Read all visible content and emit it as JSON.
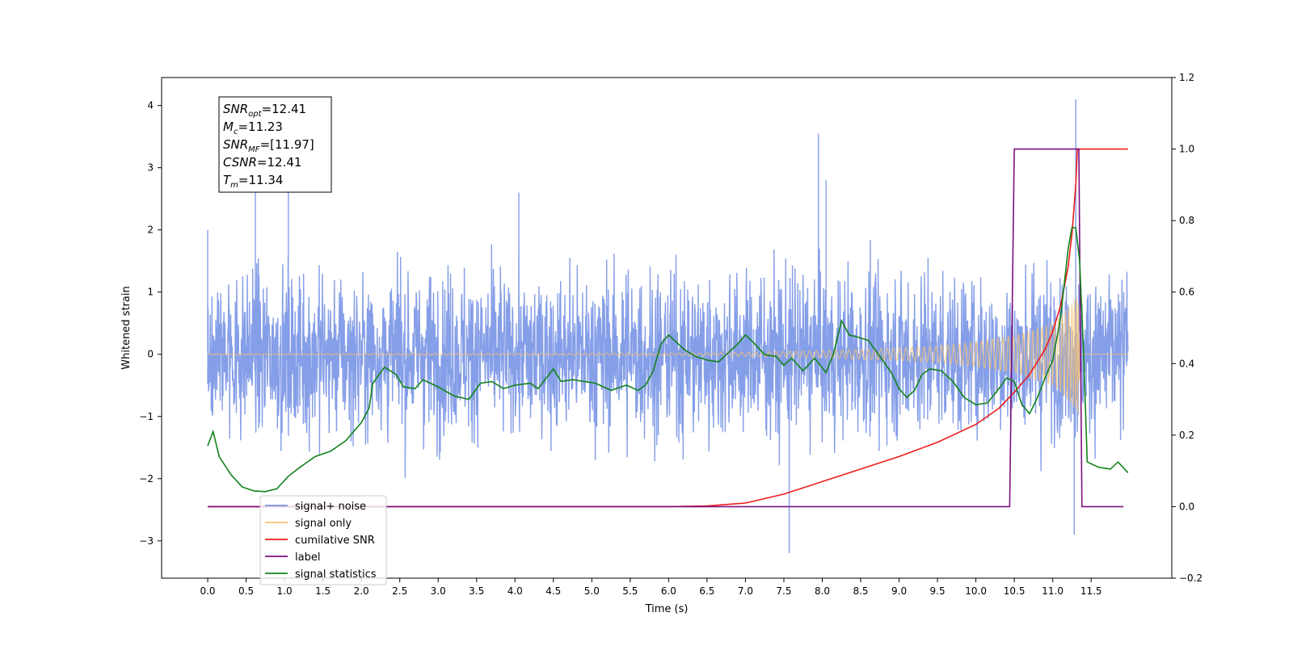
{
  "chart_data": {
    "type": "line",
    "xlabel": "Time (s)",
    "ylabel_left": "Whitened strain",
    "ylabel_right": "",
    "xlim": [
      -0.6,
      12.55
    ],
    "ylim_left": [
      -3.6,
      4.45
    ],
    "ylim_right": [
      -0.2,
      1.2
    ],
    "x_ticks": [
      "0.0",
      "0.5",
      "1.0",
      "1.5",
      "2.0",
      "2.5",
      "3.0",
      "3.5",
      "4.0",
      "4.5",
      "5.0",
      "5.5",
      "6.0",
      "6.5",
      "7.0",
      "7.5",
      "8.0",
      "8.5",
      "9.0",
      "9.5",
      "10.0",
      "10.5",
      "11.0",
      "11.5"
    ],
    "y_ticks_left": [
      "−3",
      "−2",
      "−1",
      "0",
      "1",
      "2",
      "3",
      "4"
    ],
    "y_ticks_right": [
      "−0.2",
      "0.0",
      "0.2",
      "0.4",
      "0.6",
      "0.8",
      "1.0",
      "1.2"
    ],
    "grid": false,
    "legend_position": "lower-left",
    "info_box": {
      "lines": [
        {
          "main": "SNR",
          "sub": "opt",
          "rest": "=12.41"
        },
        {
          "main": "M",
          "sub": "c",
          "rest": "=11.23"
        },
        {
          "main": "SNR",
          "sub": "MF",
          "rest": "=[11.97]"
        },
        {
          "main": "CSNR",
          "sub": "",
          "rest": "=12.41"
        },
        {
          "main": "T",
          "sub": "m",
          "rest": "=11.34"
        }
      ]
    },
    "series": [
      {
        "name": "signal+ noise",
        "axis": "left",
        "color": "#7893e6",
        "style": "noise",
        "x_range": [
          0.0,
          11.98
        ],
        "noise_rms": 0.9,
        "notable_peaks": [
          [
            0.0,
            2.0
          ],
          [
            0.62,
            2.7
          ],
          [
            1.05,
            2.75
          ],
          [
            4.05,
            2.6
          ],
          [
            7.57,
            -3.2
          ],
          [
            7.95,
            3.55
          ],
          [
            8.05,
            2.8
          ],
          [
            11.3,
            4.1
          ],
          [
            11.28,
            -2.9
          ]
        ]
      },
      {
        "name": "signal only",
        "axis": "left",
        "color": "#f5c270",
        "style": "chirp",
        "x_range": [
          0.0,
          11.98
        ],
        "envelope": [
          [
            0.0,
            0.005
          ],
          [
            6.5,
            0.02
          ],
          [
            8.0,
            0.06
          ],
          [
            9.0,
            0.1
          ],
          [
            9.5,
            0.13
          ],
          [
            10.0,
            0.2
          ],
          [
            10.5,
            0.3
          ],
          [
            11.0,
            0.5
          ],
          [
            11.2,
            0.75
          ],
          [
            11.3,
            0.9
          ],
          [
            11.33,
            0.95
          ],
          [
            11.36,
            0.0
          ],
          [
            11.98,
            0.0
          ]
        ]
      },
      {
        "name": "cumilative SNR",
        "axis": "right",
        "color": "#ee1c1c",
        "style": "line",
        "points": [
          [
            0.0,
            0.0
          ],
          [
            6.0,
            0.0
          ],
          [
            6.5,
            0.002
          ],
          [
            7.0,
            0.01
          ],
          [
            7.5,
            0.035
          ],
          [
            8.0,
            0.07
          ],
          [
            8.5,
            0.105
          ],
          [
            9.0,
            0.14
          ],
          [
            9.5,
            0.18
          ],
          [
            10.0,
            0.23
          ],
          [
            10.3,
            0.275
          ],
          [
            10.5,
            0.32
          ],
          [
            10.7,
            0.37
          ],
          [
            10.9,
            0.44
          ],
          [
            11.0,
            0.49
          ],
          [
            11.1,
            0.56
          ],
          [
            11.2,
            0.67
          ],
          [
            11.25,
            0.76
          ],
          [
            11.3,
            0.9
          ],
          [
            11.32,
            1.0
          ],
          [
            11.98,
            1.0
          ]
        ]
      },
      {
        "name": "label",
        "axis": "right",
        "color": "#7d0f80",
        "style": "line",
        "points": [
          [
            0.0,
            0.0
          ],
          [
            10.44,
            0.0
          ],
          [
            10.5,
            1.0
          ],
          [
            11.34,
            1.0
          ],
          [
            11.38,
            0.0
          ],
          [
            11.92,
            0.0
          ]
        ]
      },
      {
        "name": "signal statistics",
        "axis": "right",
        "color": "#12821c",
        "style": "line",
        "points": [
          [
            0.0,
            0.17
          ],
          [
            0.07,
            0.21
          ],
          [
            0.15,
            0.14
          ],
          [
            0.3,
            0.09
          ],
          [
            0.45,
            0.055
          ],
          [
            0.6,
            0.044
          ],
          [
            0.75,
            0.042
          ],
          [
            0.9,
            0.05
          ],
          [
            1.05,
            0.085
          ],
          [
            1.2,
            0.11
          ],
          [
            1.4,
            0.14
          ],
          [
            1.6,
            0.155
          ],
          [
            1.8,
            0.185
          ],
          [
            2.0,
            0.235
          ],
          [
            2.1,
            0.275
          ],
          [
            2.15,
            0.345
          ],
          [
            2.3,
            0.39
          ],
          [
            2.45,
            0.37
          ],
          [
            2.55,
            0.335
          ],
          [
            2.7,
            0.33
          ],
          [
            2.8,
            0.355
          ],
          [
            3.0,
            0.335
          ],
          [
            3.2,
            0.31
          ],
          [
            3.4,
            0.3
          ],
          [
            3.55,
            0.345
          ],
          [
            3.7,
            0.35
          ],
          [
            3.85,
            0.33
          ],
          [
            4.0,
            0.34
          ],
          [
            4.2,
            0.345
          ],
          [
            4.3,
            0.33
          ],
          [
            4.5,
            0.385
          ],
          [
            4.6,
            0.35
          ],
          [
            4.75,
            0.355
          ],
          [
            4.9,
            0.35
          ],
          [
            5.05,
            0.345
          ],
          [
            5.25,
            0.325
          ],
          [
            5.45,
            0.34
          ],
          [
            5.6,
            0.325
          ],
          [
            5.7,
            0.34
          ],
          [
            5.8,
            0.38
          ],
          [
            5.9,
            0.455
          ],
          [
            6.0,
            0.48
          ],
          [
            6.1,
            0.46
          ],
          [
            6.2,
            0.44
          ],
          [
            6.35,
            0.42
          ],
          [
            6.5,
            0.41
          ],
          [
            6.65,
            0.405
          ],
          [
            6.75,
            0.425
          ],
          [
            6.9,
            0.455
          ],
          [
            7.0,
            0.48
          ],
          [
            7.1,
            0.46
          ],
          [
            7.25,
            0.425
          ],
          [
            7.4,
            0.42
          ],
          [
            7.5,
            0.395
          ],
          [
            7.6,
            0.415
          ],
          [
            7.75,
            0.38
          ],
          [
            7.9,
            0.415
          ],
          [
            8.05,
            0.375
          ],
          [
            8.15,
            0.43
          ],
          [
            8.25,
            0.52
          ],
          [
            8.35,
            0.48
          ],
          [
            8.45,
            0.475
          ],
          [
            8.6,
            0.465
          ],
          [
            8.75,
            0.42
          ],
          [
            8.9,
            0.375
          ],
          [
            9.0,
            0.33
          ],
          [
            9.1,
            0.305
          ],
          [
            9.2,
            0.325
          ],
          [
            9.3,
            0.37
          ],
          [
            9.4,
            0.385
          ],
          [
            9.55,
            0.38
          ],
          [
            9.7,
            0.35
          ],
          [
            9.85,
            0.305
          ],
          [
            10.0,
            0.285
          ],
          [
            10.15,
            0.29
          ],
          [
            10.3,
            0.33
          ],
          [
            10.4,
            0.36
          ],
          [
            10.5,
            0.35
          ],
          [
            10.6,
            0.285
          ],
          [
            10.7,
            0.26
          ],
          [
            10.8,
            0.305
          ],
          [
            10.9,
            0.36
          ],
          [
            11.0,
            0.41
          ],
          [
            11.1,
            0.525
          ],
          [
            11.2,
            0.72
          ],
          [
            11.25,
            0.78
          ],
          [
            11.3,
            0.78
          ],
          [
            11.35,
            0.69
          ],
          [
            11.4,
            0.44
          ],
          [
            11.45,
            0.125
          ],
          [
            11.6,
            0.11
          ],
          [
            11.75,
            0.105
          ],
          [
            11.85,
            0.125
          ],
          [
            11.98,
            0.095
          ]
        ]
      }
    ],
    "legend": [
      "signal+ noise",
      "signal only",
      "cumilative SNR",
      "label",
      "signal statistics"
    ]
  }
}
